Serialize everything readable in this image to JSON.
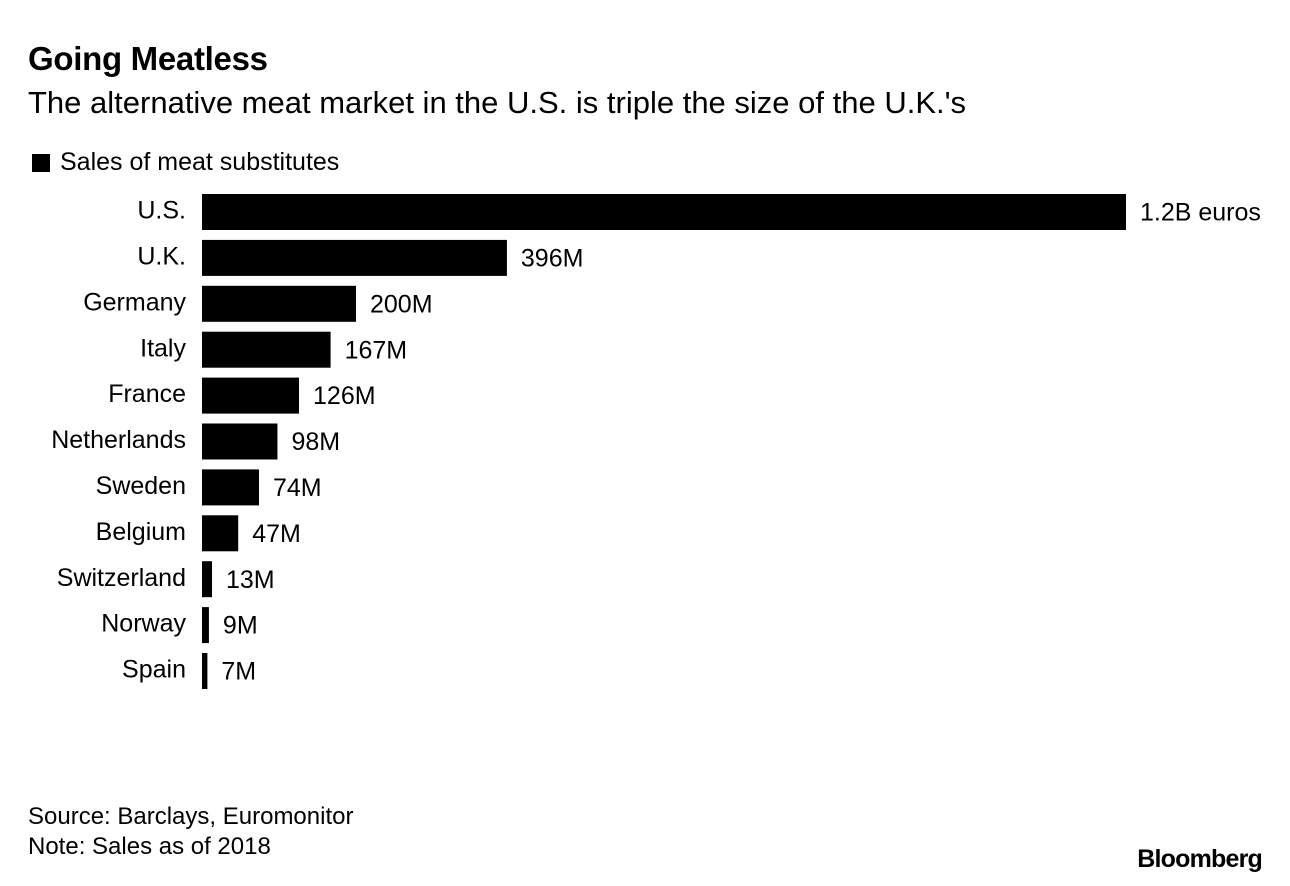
{
  "header": {
    "title": "Going Meatless",
    "subtitle": "The alternative meat market in the U.S. is triple the size of the U.K.'s"
  },
  "legend": {
    "label": "Sales of meat substitutes"
  },
  "footer": {
    "source": "Source: Barclays, Euromonitor",
    "note": "Note: Sales as of 2018",
    "brand": "Bloomberg"
  },
  "colors": {
    "bar": "#000000",
    "text": "#000000",
    "background": "#ffffff"
  },
  "chart_data": {
    "type": "bar",
    "orientation": "horizontal",
    "title": "Going Meatless",
    "subtitle": "The alternative meat market in the U.S. is triple the size of the U.K.'s",
    "xlabel": "",
    "ylabel": "",
    "unit": "million euros",
    "grid": false,
    "legend_position": "top-left",
    "xlim": [
      0,
      1200
    ],
    "categories": [
      "U.S.",
      "U.K.",
      "Germany",
      "Italy",
      "France",
      "Netherlands",
      "Sweden",
      "Belgium",
      "Switzerland",
      "Norway",
      "Spain"
    ],
    "series": [
      {
        "name": "Sales of meat substitutes",
        "values": [
          1200,
          396,
          200,
          167,
          126,
          98,
          74,
          47,
          13,
          9,
          7
        ],
        "labels": [
          "1.2B euros",
          "396M",
          "200M",
          "167M",
          "126M",
          "98M",
          "74M",
          "47M",
          "13M",
          "9M",
          "7M"
        ]
      }
    ]
  }
}
